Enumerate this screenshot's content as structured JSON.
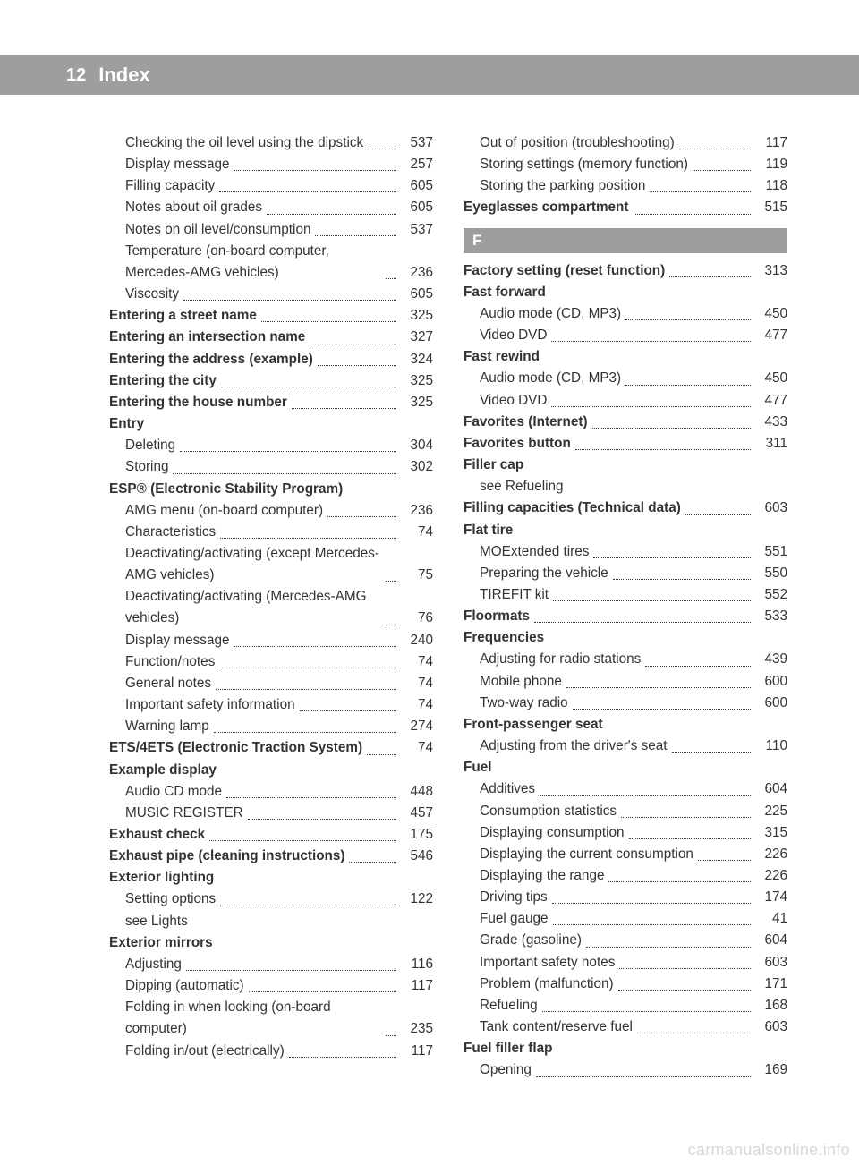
{
  "page_number": "12",
  "page_title": "Index",
  "section_letter": "F",
  "watermark": "carmanualsonline.info",
  "left": [
    {
      "t": "entry",
      "sub": 1,
      "label": "Checking the oil level using the dipstick",
      "pg": "537"
    },
    {
      "t": "entry",
      "sub": 1,
      "label": "Display message",
      "pg": "257"
    },
    {
      "t": "entry",
      "sub": 1,
      "label": "Filling capacity",
      "pg": "605"
    },
    {
      "t": "entry",
      "sub": 1,
      "label": "Notes about oil grades",
      "pg": "605"
    },
    {
      "t": "entry",
      "sub": 1,
      "label": "Notes on oil level/consumption",
      "pg": "537"
    },
    {
      "t": "entry",
      "sub": 1,
      "label": "Temperature (on-board computer, Mercedes-AMG vehicles)",
      "pg": "236"
    },
    {
      "t": "entry",
      "sub": 1,
      "label": "Viscosity",
      "pg": "605"
    },
    {
      "t": "entry",
      "sub": 0,
      "b": 1,
      "label": "Entering a street name",
      "pg": "325"
    },
    {
      "t": "entry",
      "sub": 0,
      "b": 1,
      "label": "Entering an intersection name",
      "pg": "327"
    },
    {
      "t": "entry",
      "sub": 0,
      "b": 1,
      "label": "Entering the address (example)",
      "pg": "324"
    },
    {
      "t": "entry",
      "sub": 0,
      "b": 1,
      "label": "Entering the city",
      "pg": "325"
    },
    {
      "t": "entry",
      "sub": 0,
      "b": 1,
      "label": "Entering the house number",
      "pg": "325"
    },
    {
      "t": "heading",
      "label": "Entry"
    },
    {
      "t": "entry",
      "sub": 1,
      "label": "Deleting",
      "pg": "304"
    },
    {
      "t": "entry",
      "sub": 1,
      "label": "Storing",
      "pg": "302"
    },
    {
      "t": "heading",
      "label": "ESP® (Electronic Stability Program)",
      "sup": 1
    },
    {
      "t": "entry",
      "sub": 1,
      "label": "AMG menu (on-board computer)",
      "pg": "236"
    },
    {
      "t": "entry",
      "sub": 1,
      "label": "Characteristics",
      "pg": "74"
    },
    {
      "t": "entry",
      "sub": 1,
      "label": "Deactivating/activating (except Mercedes-AMG vehicles)",
      "pg": "75"
    },
    {
      "t": "entry",
      "sub": 1,
      "label": "Deactivating/activating (Mercedes-AMG vehicles)",
      "pg": "76"
    },
    {
      "t": "entry",
      "sub": 1,
      "label": "Display message",
      "pg": "240"
    },
    {
      "t": "entry",
      "sub": 1,
      "label": "Function/notes",
      "pg": "74"
    },
    {
      "t": "entry",
      "sub": 1,
      "label": "General notes",
      "pg": "74"
    },
    {
      "t": "entry",
      "sub": 1,
      "label": "Important safety information",
      "pg": "74"
    },
    {
      "t": "entry",
      "sub": 1,
      "label": "Warning lamp",
      "pg": "274"
    },
    {
      "t": "entry",
      "sub": 0,
      "b": 1,
      "label": "ETS/4ETS (Electronic Traction System)",
      "pg": "74"
    },
    {
      "t": "heading",
      "label": "Example display"
    },
    {
      "t": "entry",
      "sub": 1,
      "label": "Audio CD mode",
      "pg": "448"
    },
    {
      "t": "entry",
      "sub": 1,
      "label": "MUSIC REGISTER",
      "pg": "457"
    },
    {
      "t": "entry",
      "sub": 0,
      "b": 1,
      "label": "Exhaust check",
      "pg": "175"
    },
    {
      "t": "entry",
      "sub": 0,
      "b": 1,
      "label": "Exhaust pipe (cleaning instructions)",
      "pg": "546"
    },
    {
      "t": "heading",
      "label": "Exterior lighting"
    },
    {
      "t": "entry",
      "sub": 1,
      "label": "Setting options",
      "pg": "122"
    },
    {
      "t": "see",
      "sub": 1,
      "label": "see Lights"
    },
    {
      "t": "heading",
      "label": "Exterior mirrors"
    },
    {
      "t": "entry",
      "sub": 1,
      "label": "Adjusting",
      "pg": "116"
    },
    {
      "t": "entry",
      "sub": 1,
      "label": "Dipping (automatic)",
      "pg": "117"
    },
    {
      "t": "entry",
      "sub": 1,
      "label": "Folding in when locking (on-board computer)",
      "pg": "235"
    },
    {
      "t": "entry",
      "sub": 1,
      "label": "Folding in/out (electrically)",
      "pg": "117"
    }
  ],
  "right_before": [
    {
      "t": "entry",
      "sub": 1,
      "label": "Out of position (troubleshooting)",
      "pg": "117"
    },
    {
      "t": "entry",
      "sub": 1,
      "label": "Storing settings (memory function)",
      "pg": "119"
    },
    {
      "t": "entry",
      "sub": 1,
      "label": "Storing the parking position",
      "pg": "118"
    },
    {
      "t": "entry",
      "sub": 0,
      "b": 1,
      "label": "Eyeglasses compartment",
      "pg": "515"
    }
  ],
  "right_after": [
    {
      "t": "entry",
      "sub": 0,
      "b": 1,
      "label": "Factory setting (reset function)",
      "pg": "313"
    },
    {
      "t": "heading",
      "label": "Fast forward"
    },
    {
      "t": "entry",
      "sub": 1,
      "label": "Audio mode (CD, MP3)",
      "pg": "450"
    },
    {
      "t": "entry",
      "sub": 1,
      "label": "Video DVD",
      "pg": "477"
    },
    {
      "t": "heading",
      "label": "Fast rewind"
    },
    {
      "t": "entry",
      "sub": 1,
      "label": "Audio mode (CD, MP3)",
      "pg": "450"
    },
    {
      "t": "entry",
      "sub": 1,
      "label": "Video DVD",
      "pg": "477"
    },
    {
      "t": "entry",
      "sub": 0,
      "b": 1,
      "label": "Favorites (Internet)",
      "pg": "433"
    },
    {
      "t": "entry",
      "sub": 0,
      "b": 1,
      "label": "Favorites button",
      "pg": "311"
    },
    {
      "t": "heading",
      "label": "Filler cap"
    },
    {
      "t": "see",
      "sub": 1,
      "label": "see Refueling"
    },
    {
      "t": "entry",
      "sub": 0,
      "b": 1,
      "label": "Filling capacities (Technical data)",
      "pg": "603"
    },
    {
      "t": "heading",
      "label": "Flat tire"
    },
    {
      "t": "entry",
      "sub": 1,
      "label": "MOExtended tires",
      "pg": "551"
    },
    {
      "t": "entry",
      "sub": 1,
      "label": "Preparing the vehicle",
      "pg": "550"
    },
    {
      "t": "entry",
      "sub": 1,
      "label": "TIREFIT kit",
      "pg": "552"
    },
    {
      "t": "entry",
      "sub": 0,
      "b": 1,
      "label": "Floormats",
      "pg": "533"
    },
    {
      "t": "heading",
      "label": "Frequencies"
    },
    {
      "t": "entry",
      "sub": 1,
      "label": "Adjusting for radio stations",
      "pg": "439"
    },
    {
      "t": "entry",
      "sub": 1,
      "label": "Mobile phone",
      "pg": "600"
    },
    {
      "t": "entry",
      "sub": 1,
      "label": "Two-way radio",
      "pg": "600"
    },
    {
      "t": "heading",
      "label": "Front-passenger seat"
    },
    {
      "t": "entry",
      "sub": 1,
      "label": "Adjusting from the driver's seat",
      "pg": "110"
    },
    {
      "t": "heading",
      "label": "Fuel"
    },
    {
      "t": "entry",
      "sub": 1,
      "label": "Additives",
      "pg": "604"
    },
    {
      "t": "entry",
      "sub": 1,
      "label": "Consumption statistics",
      "pg": "225"
    },
    {
      "t": "entry",
      "sub": 1,
      "label": "Displaying consumption",
      "pg": "315"
    },
    {
      "t": "entry",
      "sub": 1,
      "label": "Displaying the current consumption",
      "pg": "226"
    },
    {
      "t": "entry",
      "sub": 1,
      "label": "Displaying the range",
      "pg": "226"
    },
    {
      "t": "entry",
      "sub": 1,
      "label": "Driving tips",
      "pg": "174"
    },
    {
      "t": "entry",
      "sub": 1,
      "label": "Fuel gauge",
      "pg": "41"
    },
    {
      "t": "entry",
      "sub": 1,
      "label": "Grade (gasoline)",
      "pg": "604"
    },
    {
      "t": "entry",
      "sub": 1,
      "label": "Important safety notes",
      "pg": "603"
    },
    {
      "t": "entry",
      "sub": 1,
      "label": "Problem (malfunction)",
      "pg": "171"
    },
    {
      "t": "entry",
      "sub": 1,
      "label": "Refueling",
      "pg": "168"
    },
    {
      "t": "entry",
      "sub": 1,
      "label": "Tank content/reserve fuel",
      "pg": "603"
    },
    {
      "t": "heading",
      "label": "Fuel filler flap"
    },
    {
      "t": "entry",
      "sub": 1,
      "label": "Opening",
      "pg": "169"
    }
  ]
}
